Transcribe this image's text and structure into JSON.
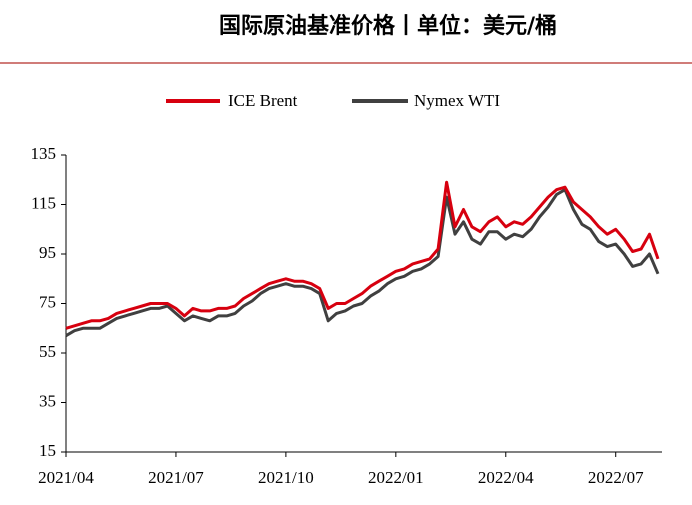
{
  "chart_data": {
    "type": "line",
    "title": "国际原油基准价格丨单位：美元/桶",
    "categories": [
      "2021/04",
      null,
      null,
      null,
      null,
      null,
      null,
      null,
      null,
      null,
      null,
      null,
      null,
      "2021/07",
      null,
      null,
      null,
      null,
      null,
      null,
      null,
      null,
      null,
      null,
      null,
      null,
      "2021/10",
      null,
      null,
      null,
      null,
      null,
      null,
      null,
      null,
      null,
      null,
      null,
      null,
      "2022/01",
      null,
      null,
      null,
      null,
      null,
      null,
      null,
      null,
      null,
      null,
      null,
      null,
      "2022/04",
      null,
      null,
      null,
      null,
      null,
      null,
      null,
      null,
      null,
      null,
      null,
      null,
      "2022/07",
      null,
      null,
      null,
      null,
      null
    ],
    "series": [
      {
        "name": "ICE Brent",
        "color": "#d7000f",
        "values": [
          65,
          66,
          67,
          68,
          68,
          69,
          71,
          72,
          73,
          74,
          75,
          75,
          75,
          73,
          70,
          73,
          72,
          72,
          73,
          73,
          74,
          77,
          79,
          81,
          83,
          84,
          85,
          84,
          84,
          83,
          81,
          73,
          75,
          75,
          77,
          79,
          82,
          84,
          86,
          88,
          89,
          91,
          92,
          93,
          97,
          124,
          106,
          113,
          106,
          104,
          108,
          110,
          106,
          108,
          107,
          110,
          114,
          118,
          121,
          122,
          116,
          113,
          110,
          106,
          103,
          105,
          101,
          96,
          97,
          103,
          93
        ]
      },
      {
        "name": "Nymex WTI",
        "color": "#404040",
        "values": [
          62,
          64,
          65,
          65,
          65,
          67,
          69,
          70,
          71,
          72,
          73,
          73,
          74,
          71,
          68,
          70,
          69,
          68,
          70,
          70,
          71,
          74,
          76,
          79,
          81,
          82,
          83,
          82,
          82,
          81,
          79,
          68,
          71,
          72,
          74,
          75,
          78,
          80,
          83,
          85,
          86,
          88,
          89,
          91,
          94,
          118,
          103,
          108,
          101,
          99,
          104,
          104,
          101,
          103,
          102,
          105,
          110,
          114,
          119,
          121,
          113,
          107,
          105,
          100,
          98,
          99,
          95,
          90,
          91,
          95,
          87
        ]
      }
    ],
    "ylim": [
      15,
      135
    ],
    "yticks": [
      15,
      35,
      55,
      75,
      95,
      115,
      135
    ],
    "grid": false
  }
}
